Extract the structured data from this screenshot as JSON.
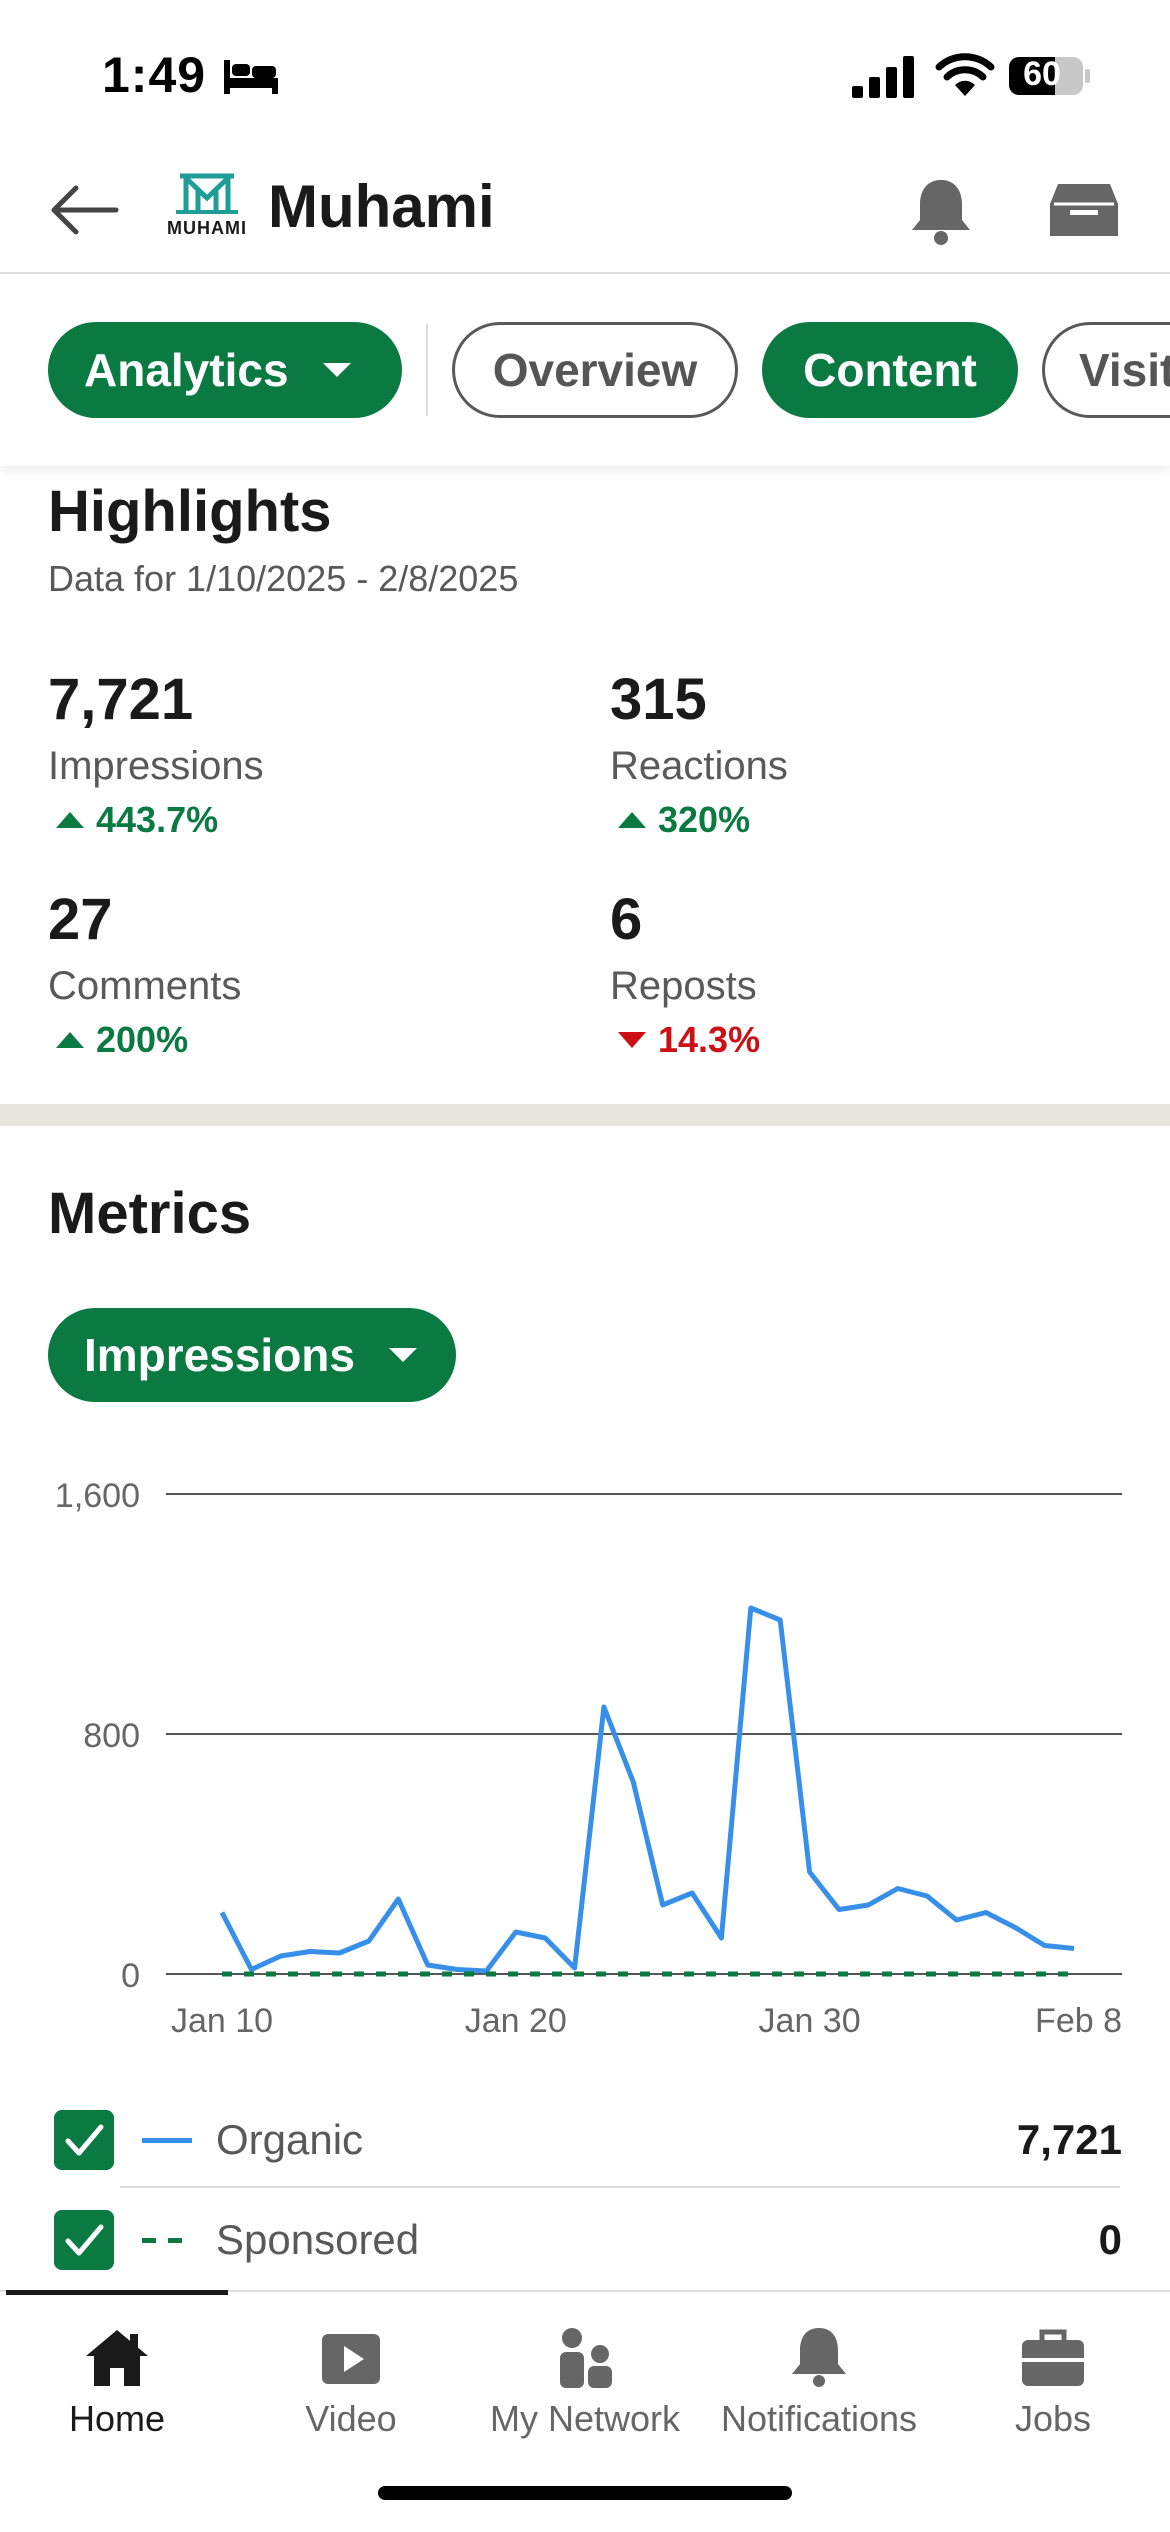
{
  "status_bar": {
    "time": "1:49",
    "battery": "60"
  },
  "header": {
    "company_name": "Muhami",
    "logo_text": "MUHAMI"
  },
  "tabs": [
    {
      "label": "Analytics",
      "style": "filled-dropdown"
    },
    {
      "label": "Overview",
      "style": "outline"
    },
    {
      "label": "Content",
      "style": "filled"
    },
    {
      "label": "Visitors",
      "style": "outline"
    }
  ],
  "highlights": {
    "title": "Highlights",
    "subtitle": "Data for 1/10/2025 - 2/8/2025",
    "stats": [
      {
        "value": "7,721",
        "label": "Impressions",
        "change": "443.7%",
        "direction": "up"
      },
      {
        "value": "315",
        "label": "Reactions",
        "change": "320%",
        "direction": "up"
      },
      {
        "value": "27",
        "label": "Comments",
        "change": "200%",
        "direction": "up"
      },
      {
        "value": "6",
        "label": "Reposts",
        "change": "14.3%",
        "direction": "down"
      }
    ]
  },
  "metrics": {
    "title": "Metrics",
    "dropdown_label": "Impressions"
  },
  "chart_data": {
    "type": "line",
    "title": "",
    "xlabel": "",
    "ylabel": "",
    "ylim": [
      0,
      1600
    ],
    "y_ticks": [
      "0",
      "800",
      "1,600"
    ],
    "x_ticks": [
      "Jan 10",
      "Jan 20",
      "Jan 30",
      "Feb 8"
    ],
    "x": [
      "Jan 10",
      "Jan 11",
      "Jan 12",
      "Jan 13",
      "Jan 14",
      "Jan 15",
      "Jan 16",
      "Jan 17",
      "Jan 18",
      "Jan 19",
      "Jan 20",
      "Jan 21",
      "Jan 22",
      "Jan 23",
      "Jan 24",
      "Jan 25",
      "Jan 26",
      "Jan 27",
      "Jan 28",
      "Jan 29",
      "Jan 30",
      "Jan 31",
      "Feb 1",
      "Feb 2",
      "Feb 3",
      "Feb 4",
      "Feb 5",
      "Feb 6",
      "Feb 7",
      "Feb 8"
    ],
    "series": [
      {
        "name": "Organic",
        "color": "#378fe9",
        "style": "solid",
        "values": [
          205,
          15,
          60,
          75,
          70,
          110,
          250,
          30,
          15,
          10,
          140,
          120,
          20,
          890,
          640,
          230,
          270,
          120,
          1220,
          1180,
          340,
          215,
          230,
          285,
          260,
          180,
          205,
          155,
          95,
          85
        ]
      },
      {
        "name": "Sponsored",
        "color": "#0b7a42",
        "style": "dashed",
        "values": [
          0,
          0,
          0,
          0,
          0,
          0,
          0,
          0,
          0,
          0,
          0,
          0,
          0,
          0,
          0,
          0,
          0,
          0,
          0,
          0,
          0,
          0,
          0,
          0,
          0,
          0,
          0,
          0,
          0,
          0
        ]
      }
    ],
    "grid": true
  },
  "legend": [
    {
      "label": "Organic",
      "value": "7,721",
      "checked": true,
      "color": "#378fe9",
      "style": "solid"
    },
    {
      "label": "Sponsored",
      "value": "0",
      "checked": true,
      "color": "#0b7a42",
      "style": "dashed"
    }
  ],
  "bottom_nav": [
    {
      "label": "Home",
      "icon": "home-icon",
      "active": true
    },
    {
      "label": "Video",
      "icon": "video-icon",
      "active": false
    },
    {
      "label": "My Network",
      "icon": "network-icon",
      "active": false
    },
    {
      "label": "Notifications",
      "icon": "bell-icon",
      "active": false
    },
    {
      "label": "Jobs",
      "icon": "briefcase-icon",
      "active": false
    }
  ],
  "colors": {
    "brand_green": "#0b7a42",
    "down_red": "#cc1016",
    "organic_blue": "#378fe9"
  }
}
